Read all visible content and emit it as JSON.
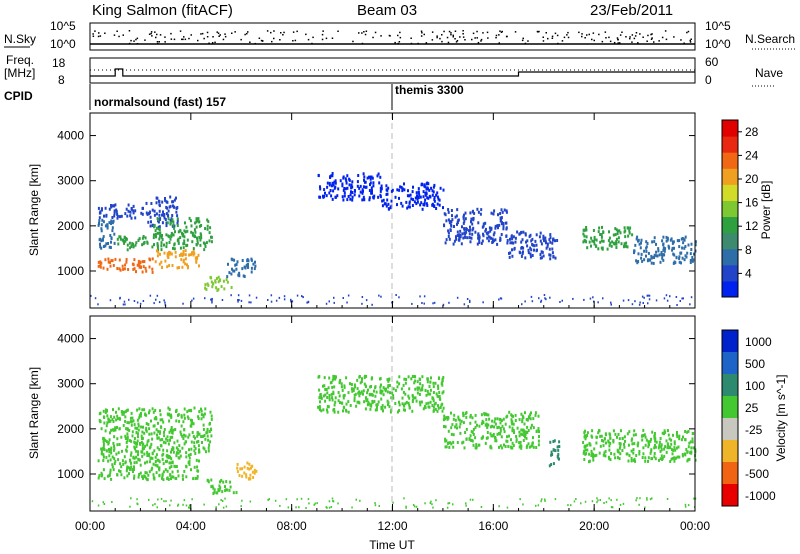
{
  "header": {
    "title": "King Salmon (fitACF)",
    "beam": "Beam 03",
    "date": "23/Feb/2011"
  },
  "strips": {
    "nsky_label": "N.Sky",
    "nsearch_label": "N.Search",
    "freq_label_top": "Freq.",
    "freq_label_unit": "[MHz]",
    "nave_label": "Nave",
    "cpid_label": "CPID",
    "left_ticks_top": [
      "10^5",
      "10^0"
    ],
    "right_ticks_top": [
      "10^5",
      "10^0"
    ],
    "left_ticks_freq": [
      "18",
      "8"
    ],
    "right_ticks_nave": [
      "60",
      "0"
    ],
    "cpid_segments": [
      {
        "start_hour": 0,
        "label": "normalsound (fast) 157"
      },
      {
        "start_hour": 12,
        "label": "themis 3300"
      }
    ],
    "freq_steps": [
      {
        "hour": 0,
        "mhz": 10.5
      },
      {
        "hour": 1.0,
        "mhz": 14
      },
      {
        "hour": 1.3,
        "mhz": 10.5
      },
      {
        "hour": 17,
        "mhz": 12.5
      },
      {
        "hour": 24,
        "mhz": 12.5
      }
    ]
  },
  "chart_data": [
    {
      "type": "heatmap",
      "title": "Power",
      "xlabel": "Time UT",
      "ylabel": "Slant Range [km]",
      "xlim": [
        0,
        24
      ],
      "ylim": [
        180,
        4500
      ],
      "x_ticks": [
        "00:00",
        "04:00",
        "08:00",
        "12:00",
        "16:00",
        "20:00",
        "00:00"
      ],
      "x_tick_hours": [
        0,
        4,
        8,
        12,
        16,
        20,
        24
      ],
      "y_ticks": [
        1000,
        2000,
        3000,
        4000
      ],
      "colorbar": {
        "label": "Power [dB]",
        "ticks": [
          4,
          8,
          12,
          16,
          20,
          24,
          28
        ],
        "range": [
          0,
          30
        ],
        "colors": [
          "#0022ee",
          "#2244c8",
          "#2e6ea8",
          "#3e8a6e",
          "#2ea040",
          "#7ec832",
          "#d2dc28",
          "#f0a020",
          "#f06814",
          "#e82810",
          "#e00000"
        ]
      },
      "regions": [
        {
          "t0": 0.3,
          "t1": 2.2,
          "r0": 2200,
          "r1": 2500,
          "value": 3
        },
        {
          "t0": 2.2,
          "t1": 3.5,
          "r0": 2000,
          "r1": 2700,
          "value": 5
        },
        {
          "t0": 0.3,
          "t1": 1.0,
          "r0": 1500,
          "r1": 2200,
          "value": 6
        },
        {
          "t0": 1.0,
          "t1": 2.5,
          "r0": 1500,
          "r1": 1800,
          "value": 12
        },
        {
          "t0": 2.5,
          "t1": 4.8,
          "r0": 1500,
          "r1": 2200,
          "value": 13
        },
        {
          "t0": 0.3,
          "t1": 2.5,
          "r0": 1000,
          "r1": 1300,
          "value": 22
        },
        {
          "t0": 2.5,
          "t1": 4.3,
          "r0": 1100,
          "r1": 1500,
          "value": 20
        },
        {
          "t0": 4.5,
          "t1": 5.6,
          "r0": 600,
          "r1": 900,
          "value": 14
        },
        {
          "t0": 5.4,
          "t1": 6.6,
          "r0": 900,
          "r1": 1300,
          "value": 7
        },
        {
          "t0": 9.0,
          "t1": 11.5,
          "r0": 2600,
          "r1": 3200,
          "value": 2
        },
        {
          "t0": 11.5,
          "t1": 14.0,
          "r0": 2400,
          "r1": 3000,
          "value": 2
        },
        {
          "t0": 14.0,
          "t1": 16.5,
          "r0": 1600,
          "r1": 2400,
          "value": 3
        },
        {
          "t0": 16.5,
          "t1": 18.5,
          "r0": 1300,
          "r1": 1900,
          "value": 3
        },
        {
          "t0": 19.5,
          "t1": 21.5,
          "r0": 1500,
          "r1": 2000,
          "value": 11
        },
        {
          "t0": 21.5,
          "t1": 24.0,
          "r0": 1200,
          "r1": 1800,
          "value": 8
        }
      ]
    },
    {
      "type": "heatmap",
      "title": "Velocity",
      "xlabel": "Time UT",
      "ylabel": "Slant Range [km]",
      "xlim": [
        0,
        24
      ],
      "ylim": [
        180,
        4500
      ],
      "x_ticks": [
        "00:00",
        "04:00",
        "08:00",
        "12:00",
        "16:00",
        "20:00",
        "00:00"
      ],
      "x_tick_hours": [
        0,
        4,
        8,
        12,
        16,
        20,
        24
      ],
      "y_ticks": [
        1000,
        2000,
        3000,
        4000
      ],
      "colorbar": {
        "label": "Velocity [m s^-1]",
        "ticks": [
          "1000",
          "500",
          "100",
          "25",
          "-25",
          "-100",
          "-500",
          "-1000"
        ],
        "colors": [
          "#0022cc",
          "#1e64c8",
          "#2e8a6e",
          "#44c832",
          "#c8c8c0",
          "#f0b428",
          "#f06414",
          "#e80000"
        ]
      },
      "regions": [
        {
          "t0": 0.3,
          "t1": 4.8,
          "r0": 1500,
          "r1": 2500,
          "value": "25"
        },
        {
          "t0": 0.3,
          "t1": 4.3,
          "r0": 900,
          "r1": 1500,
          "value": "25"
        },
        {
          "t0": 4.5,
          "t1": 5.8,
          "r0": 600,
          "r1": 900,
          "value": "25"
        },
        {
          "t0": 5.8,
          "t1": 6.6,
          "r0": 900,
          "r1": 1300,
          "value": "-100"
        },
        {
          "t0": 9.0,
          "t1": 14.0,
          "r0": 2400,
          "r1": 3200,
          "value": "25"
        },
        {
          "t0": 14.0,
          "t1": 17.8,
          "r0": 1600,
          "r1": 2400,
          "value": "25"
        },
        {
          "t0": 18.2,
          "t1": 18.6,
          "r0": 1200,
          "r1": 1800,
          "value": "100"
        },
        {
          "t0": 19.5,
          "t1": 24.0,
          "r0": 1300,
          "r1": 2000,
          "value": "25"
        }
      ]
    }
  ]
}
